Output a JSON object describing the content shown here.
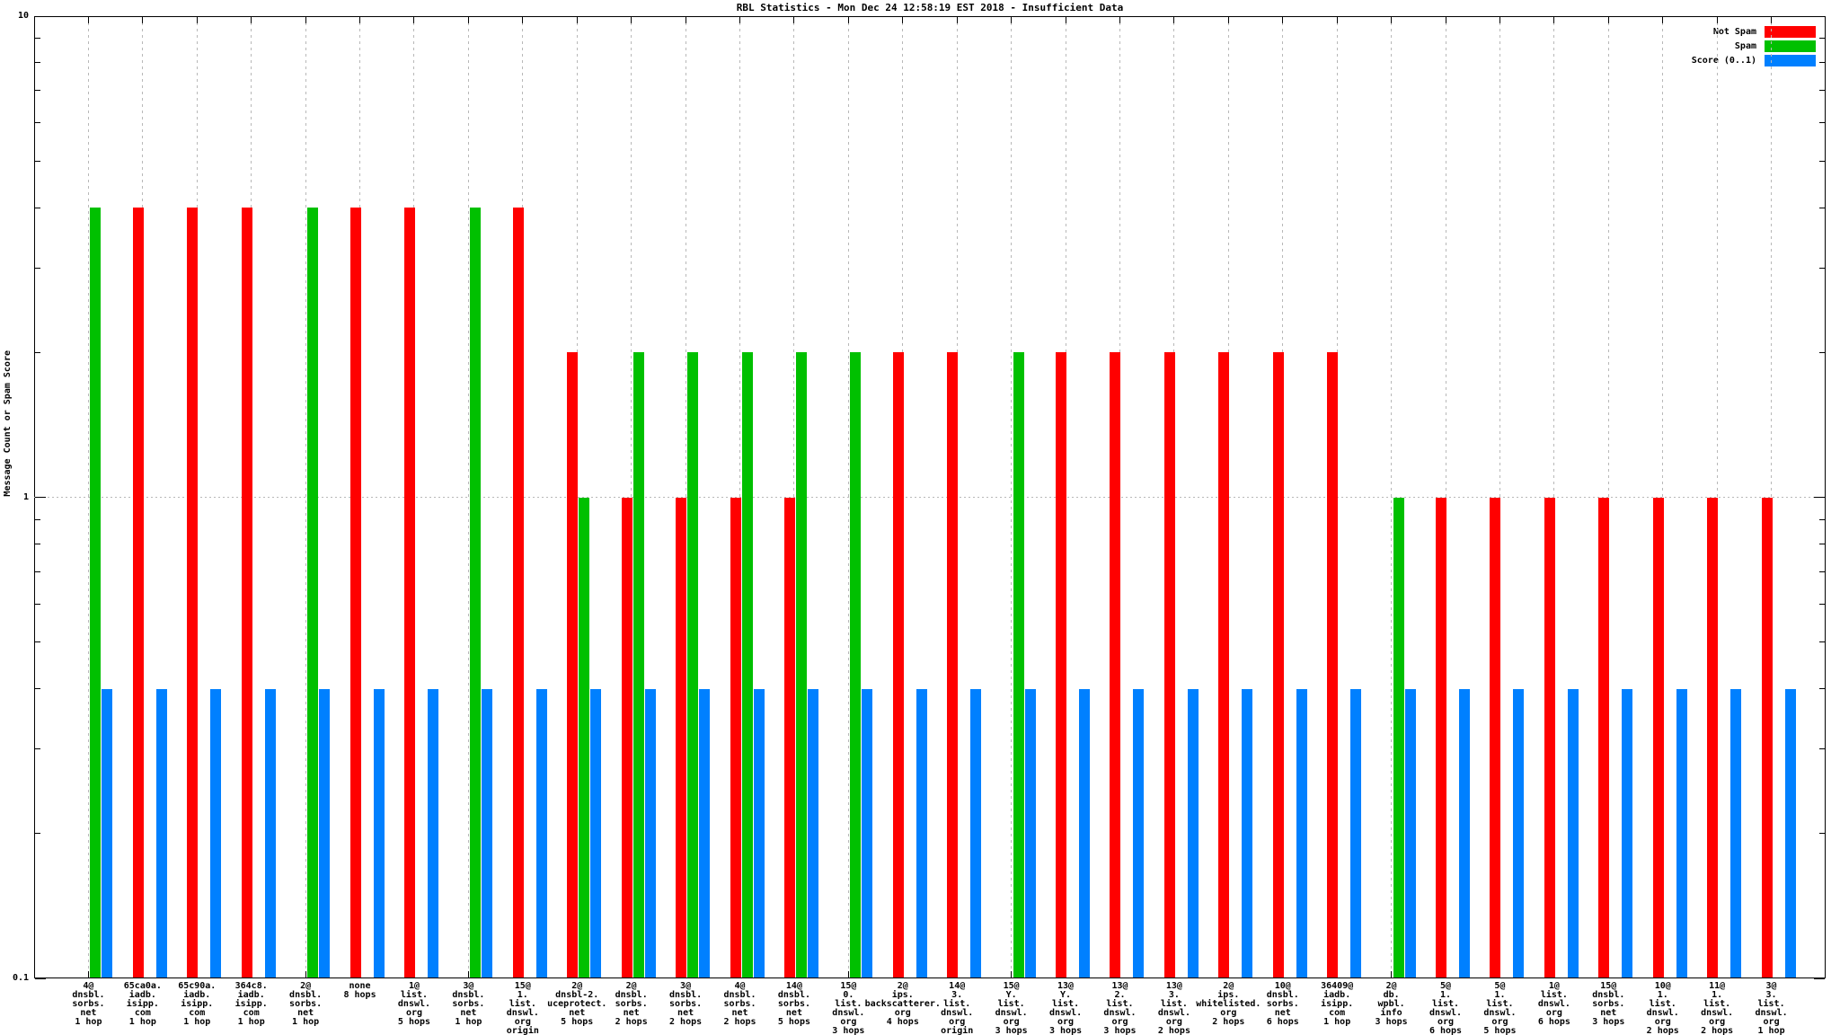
{
  "title": "RBL Statistics - Mon Dec 24 12:58:19 EST 2018 - Insufficient Data",
  "legend": [
    {
      "label": "Not Spam",
      "color": "#ff0000"
    },
    {
      "label": "Spam",
      "color": "#00c000"
    },
    {
      "label": "Score (0..1)",
      "color": "#0080ff"
    }
  ],
  "axis": {
    "y_tick_labels": [
      "10",
      "1",
      "0.1"
    ],
    "grid_color": "#b8b8b8"
  },
  "chart_data": {
    "type": "bar",
    "title": "RBL Statistics - Mon Dec 24 12:58:19 EST 2018 - Insufficient Data",
    "xlabel": "",
    "ylabel": "Message Count or Spam Score",
    "yscale": "log",
    "ylim": [
      0.1,
      10
    ],
    "grid": true,
    "legend_position": "top-right",
    "categories": [
      "4@\ndnsbl.\nsorbs.\nnet\n1 hop",
      "65ca0a.\niadb.\nisipp.\ncom\n1 hop",
      "65c90a.\niadb.\nisipp.\ncom\n1 hop",
      "364c8.\niadb.\nisipp.\ncom\n1 hop",
      "2@\ndnsbl.\nsorbs.\nnet\n1 hop",
      "none\n8 hops",
      "1@\nlist.\ndnswl.\norg\n5 hops",
      "3@\ndnsbl.\nsorbs.\nnet\n1 hop",
      "15@\n1.\nlist.\ndnswl.\norg\norigin",
      "2@\ndnsbl-2.\nuceprotect.\nnet\n5 hops",
      "2@\ndnsbl.\nsorbs.\nnet\n2 hops",
      "3@\ndnsbl.\nsorbs.\nnet\n2 hops",
      "4@\ndnsbl.\nsorbs.\nnet\n2 hops",
      "14@\ndnsbl.\nsorbs.\nnet\n5 hops",
      "15@\n0.\nlist.\ndnswl.\norg\n3 hops",
      "2@\nips.\nbackscatterer.\norg\n4 hops",
      "14@\n3.\nlist.\ndnswl.\norg\norigin",
      "15@\nY.\nlist.\ndnswl.\norg\n3 hops",
      "13@\nY.\nlist.\ndnswl.\norg\n3 hops",
      "13@\n2.\nlist.\ndnswl.\norg\n3 hops",
      "13@\n3.\nlist.\ndnswl.\norg\n2 hops",
      "2@\nips.\nwhitelisted.\norg\n2 hops",
      "10@\ndnsbl.\nsorbs.\nnet\n6 hops",
      "36409@\niadb.\nisipp.\ncom\n1 hop",
      "2@\ndb.\nwpbl.\ninfo\n3 hops",
      "5@\n1.\nlist.\ndnswl.\norg\n6 hops",
      "5@\n1.\nlist.\ndnswl.\norg\n5 hops",
      "1@\nlist.\ndnswl.\norg\n6 hops",
      "15@\ndnsbl.\nsorbs.\nnet\n3 hops",
      "10@\n1.\nlist.\ndnswl.\norg\n2 hops",
      "11@\n1.\nlist.\ndnswl.\norg\n2 hops",
      "3@\n3.\nlist.\ndnswl.\norg\n1 hop"
    ],
    "series": [
      {
        "name": "Not Spam",
        "color": "#ff0000",
        "values": [
          null,
          4,
          4,
          4,
          null,
          4,
          4,
          null,
          4,
          2,
          1,
          1,
          1,
          1,
          null,
          2,
          2,
          null,
          2,
          2,
          2,
          2,
          2,
          2,
          null,
          1,
          1,
          1,
          1,
          1,
          1,
          1
        ]
      },
      {
        "name": "Spam",
        "color": "#00c000",
        "values": [
          4,
          null,
          null,
          null,
          4,
          null,
          null,
          4,
          null,
          1,
          2,
          2,
          2,
          2,
          2,
          null,
          null,
          2,
          null,
          null,
          null,
          null,
          null,
          null,
          1,
          null,
          null,
          null,
          null,
          null,
          null,
          null
        ]
      },
      {
        "name": "Score (0..1)",
        "color": "#0080ff",
        "values": [
          0.4,
          0.4,
          0.4,
          0.4,
          0.4,
          0.4,
          0.4,
          0.4,
          0.4,
          0.4,
          0.4,
          0.4,
          0.4,
          0.4,
          0.4,
          0.4,
          0.4,
          0.4,
          0.4,
          0.4,
          0.4,
          0.4,
          0.4,
          0.4,
          0.4,
          0.4,
          0.4,
          0.4,
          0.4,
          0.4,
          0.4,
          0.4
        ]
      }
    ]
  }
}
